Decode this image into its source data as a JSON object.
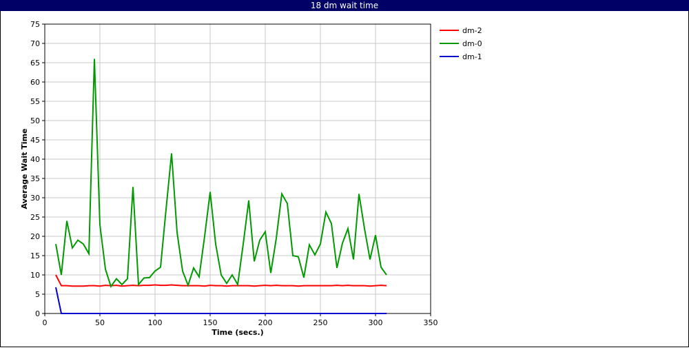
{
  "chart_data": {
    "type": "line",
    "title": "18 dm wait time",
    "x_label": "Time (secs.)",
    "y_label": "Average Wait Time",
    "x": [
      10,
      15,
      20,
      25,
      30,
      35,
      40,
      45,
      50,
      55,
      60,
      65,
      70,
      75,
      80,
      85,
      90,
      95,
      100,
      105,
      110,
      115,
      120,
      125,
      130,
      135,
      140,
      145,
      150,
      155,
      160,
      165,
      170,
      175,
      180,
      185,
      190,
      195,
      200,
      205,
      210,
      215,
      220,
      225,
      230,
      235,
      240,
      245,
      250,
      255,
      260,
      265,
      270,
      275,
      280,
      285,
      290,
      295,
      300,
      305,
      310
    ],
    "series": [
      {
        "name": "dm-2",
        "color": "#ff0000",
        "values": [
          10,
          7.2,
          7.2,
          7.1,
          7.1,
          7.1,
          7.2,
          7.2,
          7.1,
          7.3,
          7.2,
          7.3,
          7.1,
          7.2,
          7.3,
          7.2,
          7.3,
          7.3,
          7.4,
          7.3,
          7.3,
          7.4,
          7.3,
          7.2,
          7.2,
          7.2,
          7.2,
          7.1,
          7.3,
          7.2,
          7.2,
          7.1,
          7.2,
          7.2,
          7.2,
          7.2,
          7.1,
          7.2,
          7.3,
          7.2,
          7.3,
          7.2,
          7.2,
          7.2,
          7.1,
          7.2,
          7.2,
          7.2,
          7.2,
          7.2,
          7.2,
          7.3,
          7.2,
          7.3,
          7.2,
          7.2,
          7.2,
          7.1,
          7.2,
          7.3,
          7.2
        ]
      },
      {
        "name": "dm-0",
        "color": "#009900",
        "values": [
          18,
          10,
          24,
          17,
          19,
          18,
          15.5,
          66,
          23,
          11.5,
          7,
          9,
          7.5,
          9,
          32.8,
          7.5,
          9.2,
          9.3,
          11,
          12,
          27,
          41.5,
          21,
          11,
          7.3,
          11.8,
          9.5,
          20,
          31.5,
          18,
          10,
          7.8,
          10,
          7.5,
          18,
          29.3,
          13.5,
          19,
          21.2,
          10.5,
          19.5,
          31,
          28.5,
          15,
          14.7,
          9.3,
          17.8,
          15.2,
          18,
          26.3,
          23.3,
          11.8,
          18.2,
          22,
          14,
          31,
          22,
          14,
          20.3,
          12,
          10
        ]
      },
      {
        "name": "dm-1",
        "color": "#0000cc",
        "values": [
          6.8,
          0,
          0,
          0,
          0,
          0,
          0,
          0,
          0,
          0,
          0,
          0,
          0,
          0,
          0,
          0,
          0,
          0,
          0,
          0,
          0,
          0,
          0,
          0,
          0,
          0,
          0,
          0,
          0,
          0,
          0,
          0,
          0,
          0,
          0,
          0,
          0,
          0,
          0,
          0,
          0,
          0,
          0,
          0,
          0,
          0,
          0,
          0,
          0,
          0,
          0,
          0,
          0,
          0,
          0,
          0,
          0,
          0,
          0,
          0,
          0
        ]
      }
    ],
    "xlim": [
      0,
      350
    ],
    "xticks": [
      0,
      50,
      100,
      150,
      200,
      250,
      300,
      350
    ],
    "ylim": [
      0,
      75
    ],
    "yticks": [
      0,
      5,
      10,
      15,
      20,
      25,
      30,
      35,
      40,
      45,
      50,
      55,
      60,
      65,
      70,
      75
    ],
    "grid": true,
    "legend": "right"
  }
}
